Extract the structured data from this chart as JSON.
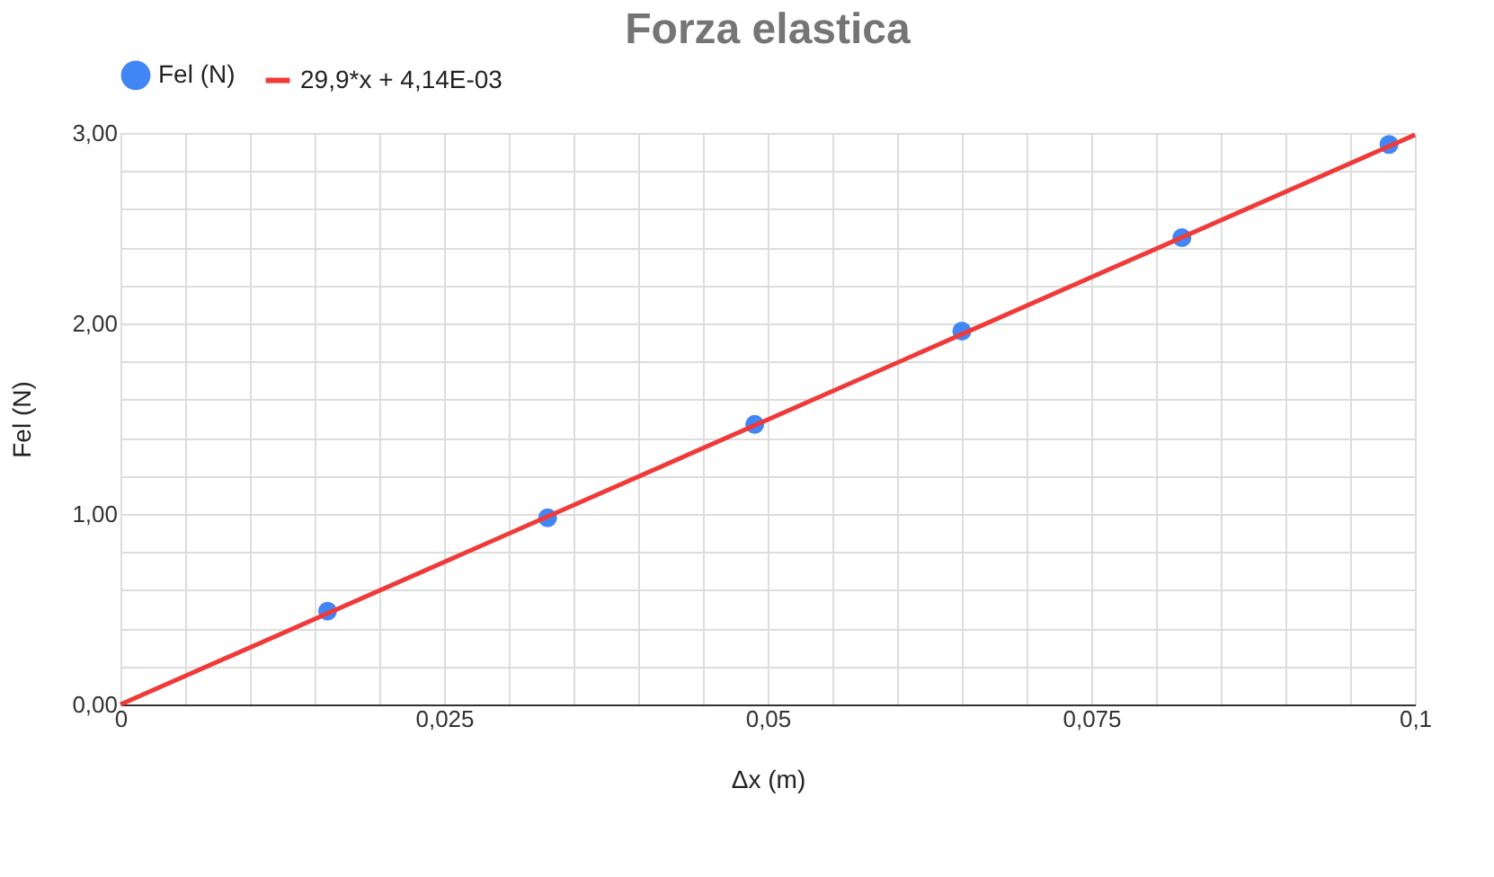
{
  "chart_data": {
    "type": "scatter",
    "title": "Forza elastica",
    "xlabel": "Δx (m)",
    "ylabel": "Fel (N)",
    "legend": "top",
    "grid": true,
    "xlim": [
      0,
      0.1
    ],
    "ylim": [
      0,
      3
    ],
    "xticks": [
      0,
      {
        "value": 0.005,
        "label": null
      },
      {
        "value": 0.01,
        "label": null
      },
      {
        "value": 0.015,
        "label": null
      },
      {
        "value": 0.02,
        "label": null
      },
      {
        "value": 0.025,
        "label": "0,025"
      },
      {
        "value": 0.03,
        "label": null
      },
      {
        "value": 0.035,
        "label": null
      },
      {
        "value": 0.04,
        "label": null
      },
      {
        "value": 0.045,
        "label": null
      },
      {
        "value": 0.05,
        "label": "0,05"
      },
      {
        "value": 0.055,
        "label": null
      },
      {
        "value": 0.06,
        "label": null
      },
      {
        "value": 0.065,
        "label": null
      },
      {
        "value": 0.07,
        "label": null
      },
      {
        "value": 0.075,
        "label": "0,075"
      },
      {
        "value": 0.08,
        "label": null
      },
      {
        "value": 0.085,
        "label": null
      },
      {
        "value": 0.09,
        "label": null
      },
      {
        "value": 0.095,
        "label": null
      },
      {
        "value": 0.1,
        "label": "0,1"
      }
    ],
    "yticks": [
      {
        "value": 0,
        "label": "0,00"
      },
      {
        "value": 0.2,
        "label": null
      },
      {
        "value": 0.4,
        "label": null
      },
      {
        "value": 0.6,
        "label": null
      },
      {
        "value": 0.8,
        "label": null
      },
      {
        "value": 1,
        "label": "1,00"
      },
      {
        "value": 1.2,
        "label": null
      },
      {
        "value": 1.4,
        "label": null
      },
      {
        "value": 1.6,
        "label": null
      },
      {
        "value": 1.8,
        "label": null
      },
      {
        "value": 2,
        "label": "2,00"
      },
      {
        "value": 2.2,
        "label": null
      },
      {
        "value": 2.4,
        "label": null
      },
      {
        "value": 2.6,
        "label": null
      },
      {
        "value": 2.8,
        "label": null
      },
      {
        "value": 3,
        "label": "3,00"
      }
    ],
    "series": [
      {
        "name": "Fel (N)",
        "marker": "circle",
        "color": "#4285f4",
        "x": [
          0.016,
          0.033,
          0.049,
          0.065,
          0.082,
          0.098
        ],
        "values": [
          0.49,
          0.98,
          1.47,
          1.96,
          2.45,
          2.94
        ]
      },
      {
        "name": "29,9*x + 4,14E-03",
        "type": "line",
        "marker": "none",
        "color": "#f03a3a",
        "x": [
          0,
          0.1
        ],
        "values": [
          0,
          2.99
        ]
      }
    ]
  }
}
